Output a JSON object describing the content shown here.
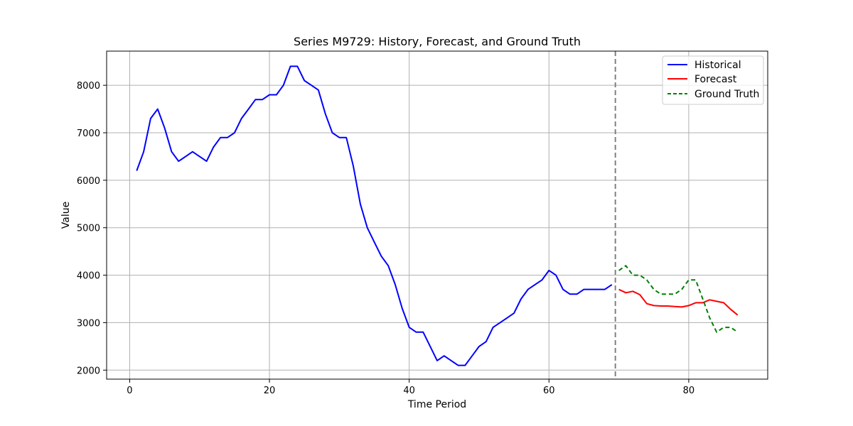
{
  "chart_data": {
    "type": "line",
    "title": "Series M9729: History, Forecast, and Ground Truth",
    "xlabel": "Time Period",
    "ylabel": "Value",
    "xlim": [
      -3.3,
      91.3
    ],
    "ylim": [
      1810,
      8720
    ],
    "x_ticks": [
      0,
      20,
      40,
      60,
      80
    ],
    "y_ticks": [
      2000,
      3000,
      4000,
      5000,
      6000,
      7000,
      8000
    ],
    "grid": true,
    "legend_position": "top-right",
    "forecast_start_marker": 69.5,
    "series": [
      {
        "name": "Historical",
        "color": "#0000ff",
        "style": "solid",
        "x": [
          1,
          2,
          3,
          4,
          5,
          6,
          7,
          8,
          9,
          10,
          11,
          12,
          13,
          14,
          15,
          16,
          17,
          18,
          19,
          20,
          21,
          22,
          23,
          24,
          25,
          26,
          27,
          28,
          29,
          30,
          31,
          32,
          33,
          34,
          35,
          36,
          37,
          38,
          39,
          40,
          41,
          42,
          43,
          44,
          45,
          46,
          47,
          48,
          49,
          50,
          51,
          52,
          53,
          54,
          55,
          56,
          57,
          58,
          59,
          60,
          61,
          62,
          63,
          64,
          65,
          66,
          67,
          68,
          69
        ],
        "values": [
          6200,
          6600,
          7300,
          7500,
          7100,
          6600,
          6400,
          6500,
          6600,
          6500,
          6400,
          6700,
          6900,
          6900,
          7000,
          7300,
          7500,
          7700,
          7700,
          7800,
          7800,
          8000,
          8400,
          8400,
          8100,
          8000,
          7900,
          7400,
          7000,
          6900,
          6900,
          6300,
          5500,
          5000,
          4700,
          4400,
          4200,
          3800,
          3300,
          2900,
          2800,
          2800,
          2500,
          2200,
          2300,
          2200,
          2100,
          2100,
          2300,
          2500,
          2600,
          2900,
          3000,
          3100,
          3200,
          3500,
          3700,
          3800,
          3900,
          4100,
          4000,
          3700,
          3600,
          3600,
          3700,
          3700,
          3700,
          3700,
          3800
        ]
      },
      {
        "name": "Forecast",
        "color": "#ff0000",
        "style": "solid",
        "x": [
          70,
          71,
          72,
          73,
          74,
          75,
          76,
          77,
          78,
          79,
          80,
          81,
          82,
          83,
          84,
          85,
          86,
          87
        ],
        "values": [
          3700,
          3630,
          3660,
          3590,
          3400,
          3360,
          3350,
          3350,
          3340,
          3330,
          3360,
          3420,
          3420,
          3480,
          3450,
          3420,
          3280,
          3160
        ]
      },
      {
        "name": "Ground Truth",
        "color": "#008000",
        "style": "dashed",
        "x": [
          70,
          71,
          72,
          73,
          74,
          75,
          76,
          77,
          78,
          79,
          80,
          81,
          82,
          83,
          84,
          85,
          86,
          87
        ],
        "values": [
          4100,
          4200,
          4000,
          4000,
          3900,
          3700,
          3600,
          3600,
          3600,
          3700,
          3900,
          3900,
          3500,
          3100,
          2800,
          2900,
          2900,
          2800
        ]
      }
    ]
  }
}
